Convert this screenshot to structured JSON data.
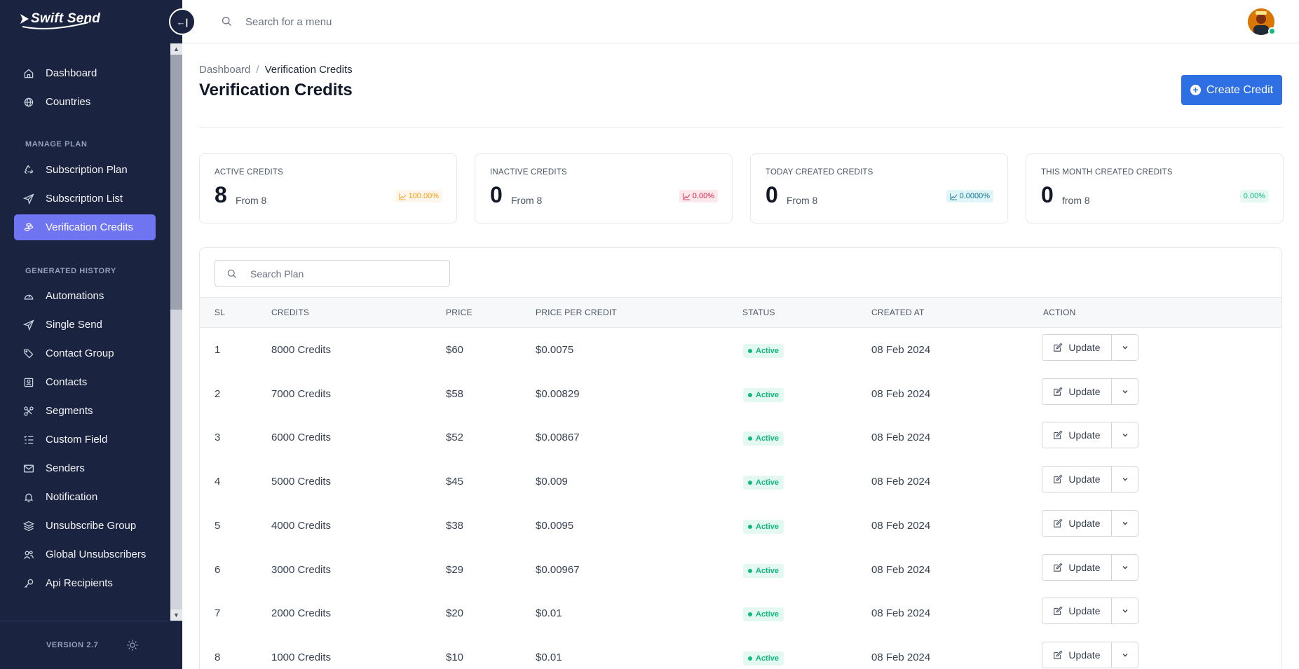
{
  "app": {
    "name": "Swift Send",
    "version": "VERSION 2.7"
  },
  "header": {
    "search_placeholder": "Search for a menu"
  },
  "sidebar": {
    "items": [
      {
        "label": "Dashboard",
        "icon": "home-icon"
      },
      {
        "label": "Countries",
        "icon": "globe-icon"
      }
    ],
    "section_manage": "MANAGE PLAN",
    "manage_items": [
      {
        "label": "Subscription Plan",
        "icon": "recycle-icon"
      },
      {
        "label": "Subscription List",
        "icon": "send-icon"
      },
      {
        "label": "Verification Credits",
        "icon": "coins-icon",
        "active": true
      }
    ],
    "section_history": "GENERATED HISTORY",
    "history_items": [
      {
        "label": "Automations",
        "icon": "gauge-icon"
      },
      {
        "label": "Single Send",
        "icon": "send-icon"
      },
      {
        "label": "Contact Group",
        "icon": "tags-icon"
      },
      {
        "label": "Contacts",
        "icon": "contact-card-icon"
      },
      {
        "label": "Segments",
        "icon": "segments-icon"
      },
      {
        "label": "Custom Field",
        "icon": "list-check-icon"
      },
      {
        "label": "Senders",
        "icon": "mail-icon"
      },
      {
        "label": "Notification",
        "icon": "bell-icon"
      },
      {
        "label": "Unsubscribe Group",
        "icon": "layers-icon"
      },
      {
        "label": "Global Unsubscribers",
        "icon": "users-icon"
      },
      {
        "label": "Api Recipients",
        "icon": "key-icon"
      }
    ]
  },
  "page": {
    "breadcrumb_root": "Dashboard",
    "breadcrumb_sep": "/",
    "breadcrumb_current": "Verification Credits",
    "title": "Verification Credits",
    "create_button": "Create Credit"
  },
  "stats": [
    {
      "label": "ACTIVE CREDITS",
      "value": "8",
      "from": "From 8",
      "badge": "100.00%",
      "color": "#f59e0b"
    },
    {
      "label": "INACTIVE CREDITS",
      "value": "0",
      "from": "From 8",
      "badge": "0.00%",
      "color": "#e11d48"
    },
    {
      "label": "TODAY CREATED CREDITS",
      "value": "0",
      "from": "From 8",
      "badge": "0.0000%",
      "color": "#0e7490"
    },
    {
      "label": "THIS MONTH CREATED CREDITS",
      "value": "0",
      "from": "from 8",
      "badge": "0.00%",
      "color": "#10b981"
    }
  ],
  "table": {
    "search_placeholder": "Search Plan",
    "columns": [
      "SL",
      "CREDITS",
      "PRICE",
      "PRICE PER CREDIT",
      "STATUS",
      "CREATED AT",
      "ACTION"
    ],
    "update_label": "Update",
    "rows": [
      {
        "sl": "1",
        "credits": "8000 Credits",
        "price": "$60",
        "ppc": "$0.0075",
        "status": "Active",
        "created": "08 Feb 2024"
      },
      {
        "sl": "2",
        "credits": "7000 Credits",
        "price": "$58",
        "ppc": "$0.00829",
        "status": "Active",
        "created": "08 Feb 2024"
      },
      {
        "sl": "3",
        "credits": "6000 Credits",
        "price": "$52",
        "ppc": "$0.00867",
        "status": "Active",
        "created": "08 Feb 2024"
      },
      {
        "sl": "4",
        "credits": "5000 Credits",
        "price": "$45",
        "ppc": "$0.009",
        "status": "Active",
        "created": "08 Feb 2024"
      },
      {
        "sl": "5",
        "credits": "4000 Credits",
        "price": "$38",
        "ppc": "$0.0095",
        "status": "Active",
        "created": "08 Feb 2024"
      },
      {
        "sl": "6",
        "credits": "3000 Credits",
        "price": "$29",
        "ppc": "$0.00967",
        "status": "Active",
        "created": "08 Feb 2024"
      },
      {
        "sl": "7",
        "credits": "2000 Credits",
        "price": "$20",
        "ppc": "$0.01",
        "status": "Active",
        "created": "08 Feb 2024"
      },
      {
        "sl": "8",
        "credits": "1000 Credits",
        "price": "$10",
        "ppc": "$0.01",
        "status": "Active",
        "created": "08 Feb 2024"
      }
    ]
  },
  "colors": {
    "sidebar_bg": "#1a2340",
    "accent": "#6f74f0",
    "primary": "#2f6fe4",
    "success": "#10b981"
  }
}
